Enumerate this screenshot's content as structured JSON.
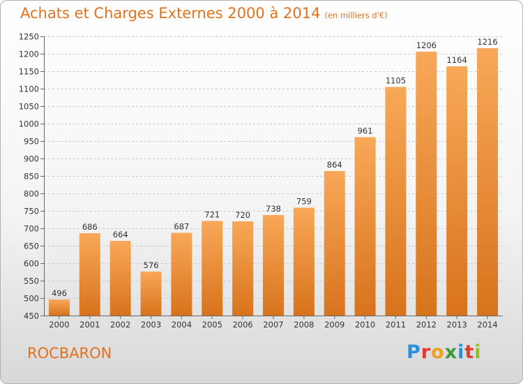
{
  "chart_title": "Achats et Charges Externes 2000 à 2014",
  "chart_subtitle": "(en milliers d'€)",
  "town_name": "ROCBARON",
  "logo": {
    "text": "Proxiti",
    "letters": [
      {
        "ch": "P",
        "color": "#2a8fd8"
      },
      {
        "ch": "r",
        "color": "#e23a2c"
      },
      {
        "ch": "o",
        "color": "#f0a020"
      },
      {
        "ch": "x",
        "color": "#3a9a3a"
      },
      {
        "ch": "i",
        "color": "#2a8fd8"
      },
      {
        "ch": "t",
        "color": "#e23a2c"
      },
      {
        "ch": "i",
        "color": "#8fbf2a"
      }
    ]
  },
  "colors": {
    "accent": "#e2711d",
    "bar_light": "#f7a655",
    "bar_dark": "#e07b1f"
  },
  "chart_data": {
    "type": "bar",
    "categories": [
      "2000",
      "2001",
      "2002",
      "2003",
      "2004",
      "2005",
      "2006",
      "2007",
      "2008",
      "2009",
      "2010",
      "2011",
      "2012",
      "2013",
      "2014"
    ],
    "values": [
      496,
      686,
      664,
      576,
      687,
      721,
      720,
      738,
      759,
      864,
      961,
      1105,
      1206,
      1164,
      1216
    ],
    "ylim": [
      450,
      1250
    ],
    "yticks": [
      450,
      500,
      550,
      600,
      650,
      700,
      750,
      800,
      850,
      900,
      950,
      1000,
      1050,
      1100,
      1150,
      1200,
      1250
    ],
    "grid": true,
    "xlabel": "",
    "ylabel": ""
  }
}
